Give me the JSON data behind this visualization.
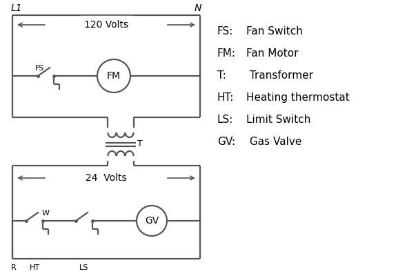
{
  "bg_color": "#ffffff",
  "line_color": "#555555",
  "text_color": "#000000",
  "legend_items": [
    [
      "FS:",
      "Fan Switch"
    ],
    [
      "FM:",
      "Fan Motor"
    ],
    [
      "T:",
      " Transformer"
    ],
    [
      "HT:",
      "Heating thermostat"
    ],
    [
      "LS:",
      "Limit Switch"
    ],
    [
      "GV:",
      " Gas Valve"
    ]
  ],
  "volt120_text": "120 Volts",
  "volt24_text": "24  Volts",
  "L1_label": "L1",
  "N_label": "N"
}
